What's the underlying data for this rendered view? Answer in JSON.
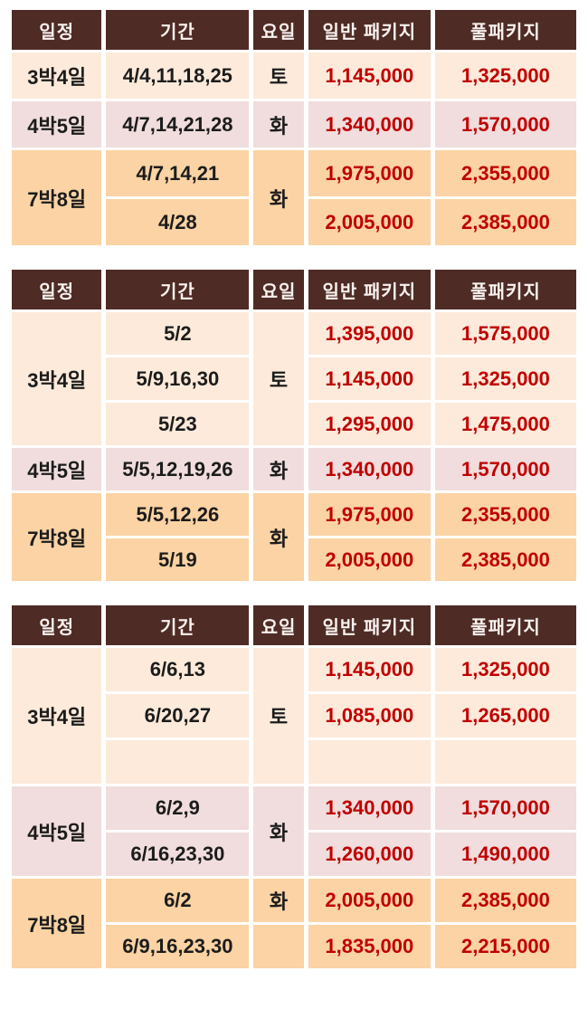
{
  "columns": [
    "일정",
    "기간",
    "요일",
    "일반 패키지",
    "풀패키지"
  ],
  "colors": {
    "header_bg": "#4f2b25",
    "header_text": "#f8f2ef",
    "row_peach": "#fdeada",
    "row_pink": "#f1dddd",
    "row_orange": "#fbd3a4",
    "price_red": "#c00000",
    "text_dark": "#1c1c1c",
    "grid_white": "#ffffff"
  },
  "tables": [
    {
      "rows": [
        {
          "tone": "peach",
          "cells": [
            {
              "text": "3박4일",
              "kind": "duration"
            },
            {
              "text": "4/4,11,18,25",
              "kind": "dates"
            },
            {
              "text": "토",
              "kind": "weekday"
            },
            {
              "text": "1,145,000",
              "kind": "price"
            },
            {
              "text": "1,325,000",
              "kind": "price"
            }
          ]
        },
        {
          "tone": "pink",
          "cells": [
            {
              "text": "4박5일",
              "kind": "duration"
            },
            {
              "text": "4/7,14,21,28",
              "kind": "dates"
            },
            {
              "text": "화",
              "kind": "weekday"
            },
            {
              "text": "1,340,000",
              "kind": "price"
            },
            {
              "text": "1,570,000",
              "kind": "price"
            }
          ]
        },
        {
          "tone": "orange",
          "cells": [
            {
              "text": "7박8일",
              "kind": "duration",
              "rowspan": 2
            },
            {
              "text": "4/7,14,21",
              "kind": "dates"
            },
            {
              "text": "화",
              "kind": "weekday",
              "rowspan": 2
            },
            {
              "text": "1,975,000",
              "kind": "price"
            },
            {
              "text": "2,355,000",
              "kind": "price"
            }
          ]
        },
        {
          "tone": "orange",
          "cells": [
            {
              "text": "4/28",
              "kind": "dates"
            },
            {
              "text": "2,005,000",
              "kind": "price"
            },
            {
              "text": "2,385,000",
              "kind": "price"
            }
          ]
        }
      ]
    },
    {
      "rows": [
        {
          "tone": "peach",
          "cells": [
            {
              "text": "3박4일",
              "kind": "duration",
              "rowspan": 3
            },
            {
              "text": "5/2",
              "kind": "dates"
            },
            {
              "text": "토",
              "kind": "weekday",
              "rowspan": 3
            },
            {
              "text": "1,395,000",
              "kind": "price"
            },
            {
              "text": "1,575,000",
              "kind": "price"
            }
          ]
        },
        {
          "tone": "peach",
          "cells": [
            {
              "text": "5/9,16,30",
              "kind": "dates"
            },
            {
              "text": "1,145,000",
              "kind": "price"
            },
            {
              "text": "1,325,000",
              "kind": "price"
            }
          ]
        },
        {
          "tone": "peach",
          "cells": [
            {
              "text": "5/23",
              "kind": "dates"
            },
            {
              "text": "1,295,000",
              "kind": "price"
            },
            {
              "text": "1,475,000",
              "kind": "price"
            }
          ]
        },
        {
          "tone": "pink",
          "cells": [
            {
              "text": "4박5일",
              "kind": "duration"
            },
            {
              "text": "5/5,12,19,26",
              "kind": "dates"
            },
            {
              "text": "화",
              "kind": "weekday"
            },
            {
              "text": "1,340,000",
              "kind": "price"
            },
            {
              "text": "1,570,000",
              "kind": "price"
            }
          ]
        },
        {
          "tone": "orange",
          "cells": [
            {
              "text": "7박8일",
              "kind": "duration",
              "rowspan": 2
            },
            {
              "text": "5/5,12,26",
              "kind": "dates"
            },
            {
              "text": "화",
              "kind": "weekday",
              "rowspan": 2
            },
            {
              "text": "1,975,000",
              "kind": "price"
            },
            {
              "text": "2,355,000",
              "kind": "price"
            }
          ]
        },
        {
          "tone": "orange",
          "cells": [
            {
              "text": "5/19",
              "kind": "dates"
            },
            {
              "text": "2,005,000",
              "kind": "price"
            },
            {
              "text": "2,385,000",
              "kind": "price"
            }
          ]
        }
      ]
    },
    {
      "rows": [
        {
          "tone": "peach",
          "cells": [
            {
              "text": "3박4일",
              "kind": "duration",
              "rowspan": 3
            },
            {
              "text": "6/6,13",
              "kind": "dates"
            },
            {
              "text": "토",
              "kind": "weekday",
              "rowspan": 3
            },
            {
              "text": "1,145,000",
              "kind": "price"
            },
            {
              "text": "1,325,000",
              "kind": "price"
            }
          ]
        },
        {
          "tone": "peach",
          "cells": [
            {
              "text": "6/20,27",
              "kind": "dates"
            },
            {
              "text": "1,085,000",
              "kind": "price"
            },
            {
              "text": "1,265,000",
              "kind": "price"
            }
          ]
        },
        {
          "tone": "peach",
          "cells": [
            {
              "text": "",
              "kind": "dates"
            },
            {
              "text": "",
              "kind": "price"
            },
            {
              "text": "",
              "kind": "price"
            }
          ]
        },
        {
          "tone": "pink",
          "cells": [
            {
              "text": "4박5일",
              "kind": "duration",
              "rowspan": 2
            },
            {
              "text": "6/2,9",
              "kind": "dates"
            },
            {
              "text": "화",
              "kind": "weekday",
              "rowspan": 2
            },
            {
              "text": "1,340,000",
              "kind": "price"
            },
            {
              "text": "1,570,000",
              "kind": "price"
            }
          ]
        },
        {
          "tone": "pink",
          "cells": [
            {
              "text": "6/16,23,30",
              "kind": "dates"
            },
            {
              "text": "1,260,000",
              "kind": "price"
            },
            {
              "text": "1,490,000",
              "kind": "price"
            }
          ]
        },
        {
          "tone": "orange",
          "cells": [
            {
              "text": "7박8일",
              "kind": "duration",
              "rowspan": 2
            },
            {
              "text": "6/2",
              "kind": "dates"
            },
            {
              "text": "화",
              "kind": "weekday"
            },
            {
              "text": "2,005,000",
              "kind": "price"
            },
            {
              "text": "2,385,000",
              "kind": "price"
            }
          ]
        },
        {
          "tone": "orange",
          "cells": [
            {
              "text": "6/9,16,23,30",
              "kind": "dates"
            },
            {
              "text": "",
              "kind": "weekday"
            },
            {
              "text": "1,835,000",
              "kind": "price"
            },
            {
              "text": "2,215,000",
              "kind": "price"
            }
          ]
        }
      ]
    }
  ]
}
